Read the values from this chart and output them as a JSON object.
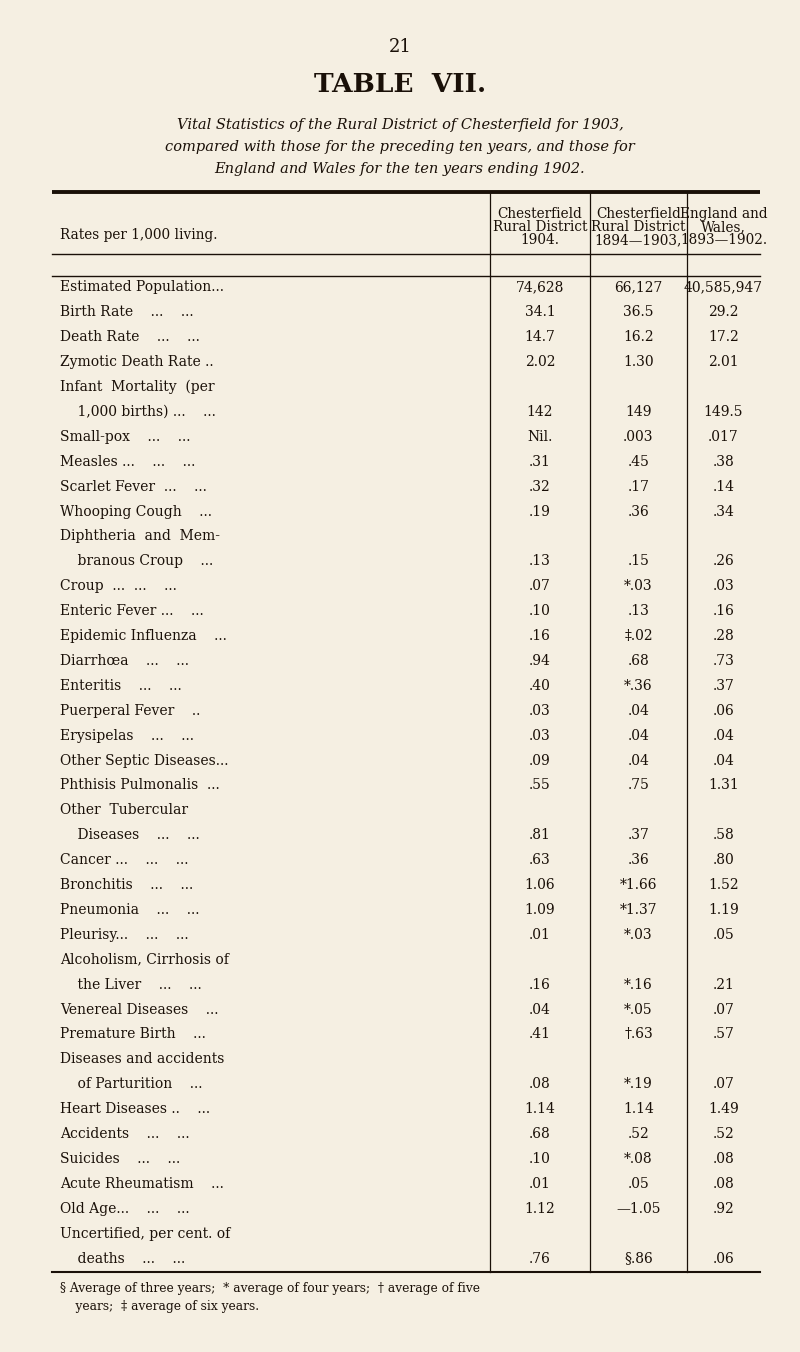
{
  "page_number": "21",
  "title": "TABLE  VII.",
  "subtitle_lines": [
    "Vital Statistics of the Rural District of Chesterfield for 1903,",
    "compared with those for the preceding ten years, and those for",
    "England and Wales for the ten years ending 1902."
  ],
  "rows": [
    [
      "Estimated Population...",
      "74,628",
      "66,127",
      "40,585,947"
    ],
    [
      "Birth Rate    ...    ...",
      "34.1",
      "36.5",
      "29.2"
    ],
    [
      "Death Rate    ...    ...",
      "14.7",
      "16.2",
      "17.2"
    ],
    [
      "Zymotic Death Rate ..",
      "2.02",
      "1.30",
      "2.01"
    ],
    [
      "Infant  Mortality  (per",
      "",
      "",
      ""
    ],
    [
      "    1,000 births) ...    ...",
      "142",
      "149",
      "149.5"
    ],
    [
      "Small-pox    ...    ...",
      "Nil.",
      ".003",
      ".017"
    ],
    [
      "Measles ...    ...    ...",
      ".31",
      ".45",
      ".38"
    ],
    [
      "Scarlet Fever  ...    ...",
      ".32",
      ".17",
      ".14"
    ],
    [
      "Whooping Cough    ...",
      ".19",
      ".36",
      ".34"
    ],
    [
      "Diphtheria  and  Mem-",
      "",
      "",
      ""
    ],
    [
      "    branous Croup    ...",
      ".13",
      ".15",
      ".26"
    ],
    [
      "Croup  ...  ...    ...",
      ".07",
      "*.03",
      ".03"
    ],
    [
      "Enteric Fever ...    ...",
      ".10",
      ".13",
      ".16"
    ],
    [
      "Epidemic Influenza    ...",
      ".16",
      "‡.02",
      ".28"
    ],
    [
      "Diarrhœa    ...    ...",
      ".94",
      ".68",
      ".73"
    ],
    [
      "Enteritis    ...    ...",
      ".40",
      "*.36",
      ".37"
    ],
    [
      "Puerperal Fever    ..",
      ".03",
      ".04",
      ".06"
    ],
    [
      "Erysipelas    ...    ...",
      ".03",
      ".04",
      ".04"
    ],
    [
      "Other Septic Diseases...",
      ".09",
      ".04",
      ".04"
    ],
    [
      "Phthisis Pulmonalis  ...",
      ".55",
      ".75",
      "1.31"
    ],
    [
      "Other  Tubercular",
      "",
      "",
      ""
    ],
    [
      "    Diseases    ...    ...",
      ".81",
      ".37",
      ".58"
    ],
    [
      "Cancer ...    ...    ...",
      ".63",
      ".36",
      ".80"
    ],
    [
      "Bronchitis    ...    ...",
      "1.06",
      "*1.66",
      "1.52"
    ],
    [
      "Pneumonia    ...    ...",
      "1.09",
      "*1.37",
      "1.19"
    ],
    [
      "Pleurisy...    ...    ...",
      ".01",
      "*.03",
      ".05"
    ],
    [
      "Alcoholism, Cirrhosis of",
      "",
      "",
      ""
    ],
    [
      "    the Liver    ...    ...",
      ".16",
      "*.16",
      ".21"
    ],
    [
      "Venereal Diseases    ...",
      ".04",
      "*.05",
      ".07"
    ],
    [
      "Premature Birth    ...",
      ".41",
      "†.63",
      ".57"
    ],
    [
      "Diseases and accidents",
      "",
      "",
      ""
    ],
    [
      "    of Parturition    ...",
      ".08",
      "*.19",
      ".07"
    ],
    [
      "Heart Diseases ..    ...",
      "1.14",
      "1.14",
      "1.49"
    ],
    [
      "Accidents    ...    ...",
      ".68",
      ".52",
      ".52"
    ],
    [
      "Suicides    ...    ...",
      ".10",
      "*.08",
      ".08"
    ],
    [
      "Acute Rheumatism    ...",
      ".01",
      ".05",
      ".08"
    ],
    [
      "Old Age...    ...    ...",
      "1.12",
      "—1.05",
      ".92"
    ],
    [
      "Uncertified, per cent. of",
      "",
      "",
      ""
    ],
    [
      "    deaths    ...    ...",
      ".76",
      "§.86",
      ".06"
    ]
  ],
  "footnote_lines": [
    "§ Average of three years;  * average of four years;  † average of five",
    "    years;  ‡ average of six years."
  ],
  "bg_color": "#f5efe2",
  "text_color": "#1a1008",
  "line_color": "#1a1008"
}
